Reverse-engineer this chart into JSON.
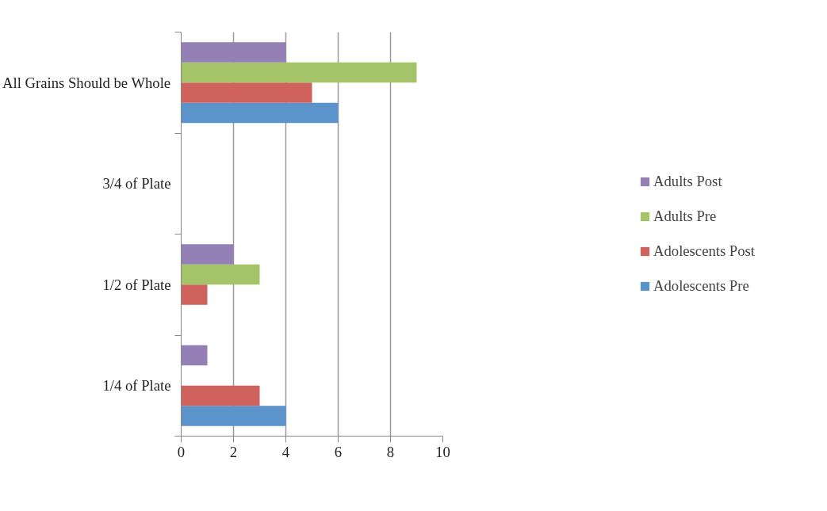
{
  "chart_data": {
    "type": "bar",
    "orientation": "horizontal",
    "categories": [
      "All Grains Should be Whole",
      "3/4 of Plate",
      "1/2 of Plate",
      "1/4 of Plate"
    ],
    "series": [
      {
        "name": "Adolescents Pre",
        "color": "#5b93cb",
        "values": [
          6,
          0,
          0,
          4
        ]
      },
      {
        "name": "Adolescents Post",
        "color": "#d0625d",
        "values": [
          5,
          0,
          1,
          3
        ]
      },
      {
        "name": "Adults Pre",
        "color": "#a5c369",
        "values": [
          9,
          0,
          3,
          0
        ]
      },
      {
        "name": "Adults Post",
        "color": "#9580b6",
        "values": [
          4,
          0,
          2,
          1
        ]
      }
    ],
    "xlim": [
      0,
      10
    ],
    "xticks": [
      0,
      2,
      4,
      6,
      8,
      10
    ],
    "grid": "x",
    "legend": "right"
  }
}
